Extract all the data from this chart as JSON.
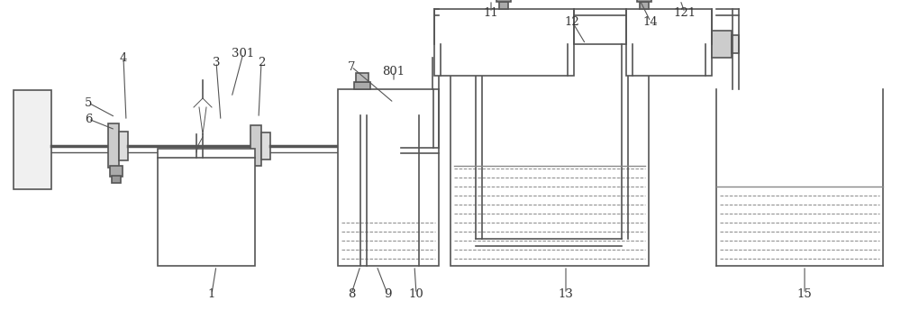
{
  "bg_color": "#ffffff",
  "lc": "#555555",
  "lw": 1.2,
  "lw_thin": 0.7,
  "label_color": "#333333",
  "dash_color": "#888888",
  "label_fs": 9.5,
  "leader_lw": 0.8,
  "leader_color": "#555555"
}
